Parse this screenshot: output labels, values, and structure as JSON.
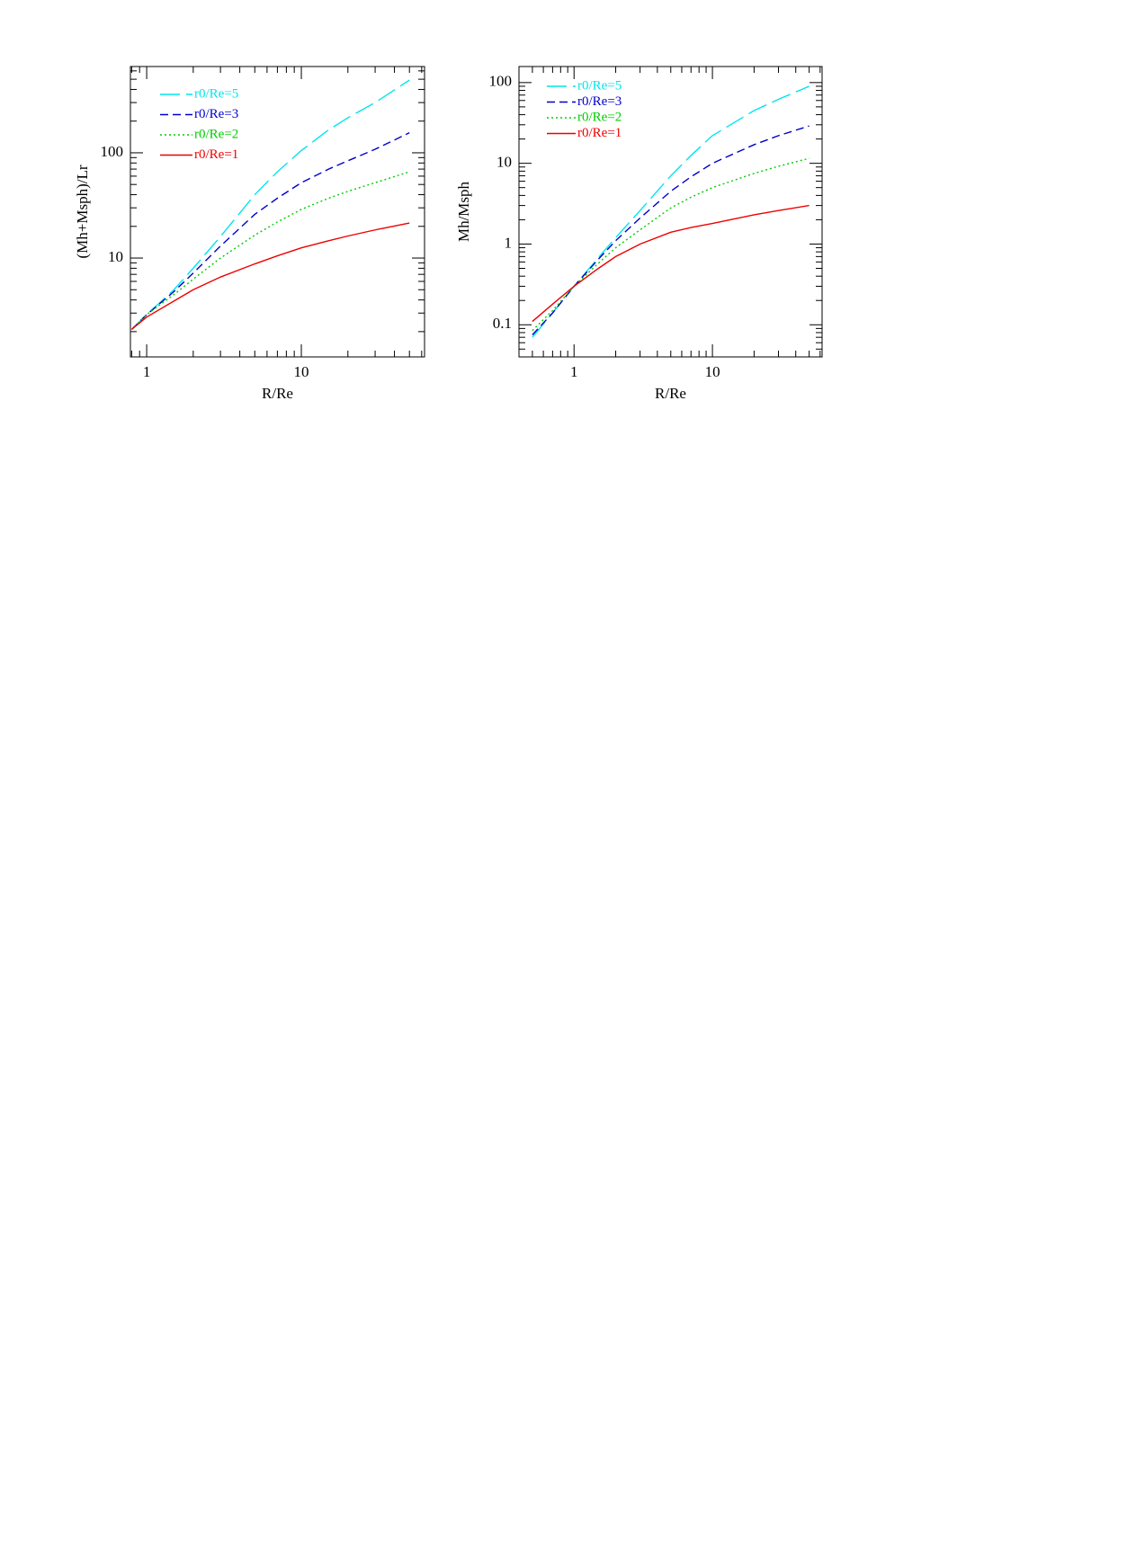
{
  "chart_data": [
    {
      "type": "line",
      "ylabel": "(Mh+Msph)/Lr",
      "xlabel": "R/Re",
      "log_x": true,
      "log_y": true,
      "xlim": [
        0.785,
        62.6
      ],
      "ylim": [
        1.15,
        660
      ],
      "xticks": [
        1,
        10
      ],
      "yticks": [
        10,
        100
      ],
      "x_minor_ticks": [
        0.8,
        0.9,
        2,
        3,
        4,
        5,
        6,
        7,
        8,
        9,
        20,
        30,
        40,
        50,
        60
      ],
      "y_minor_ticks": [
        2,
        3,
        4,
        5,
        6,
        7,
        8,
        9,
        20,
        30,
        40,
        50,
        60,
        70,
        80,
        90,
        200,
        300,
        400,
        500,
        600
      ],
      "x": [
        0.8,
        1,
        1.5,
        2,
        3,
        5,
        7,
        10,
        15,
        20,
        30,
        50
      ],
      "series": [
        {
          "name": "r0/Re=5",
          "color": "#00e5ee",
          "style": "long-dash",
          "values": [
            2.1,
            2.9,
            5,
            8,
            16,
            40,
            66,
            105,
            165,
            215,
            300,
            490
          ]
        },
        {
          "name": "r0/Re=3",
          "color": "#0000cc",
          "style": "dash",
          "values": [
            2.1,
            2.9,
            4.8,
            7.2,
            13,
            26,
            37,
            52,
            70,
            84,
            108,
            155
          ]
        },
        {
          "name": "r0/Re=2",
          "color": "#00cc00",
          "style": "dot",
          "values": [
            2.1,
            2.9,
            4.5,
            6.3,
            10,
            16.5,
            22,
            29,
            37,
            43,
            52,
            66
          ]
        },
        {
          "name": "r0/Re=1",
          "color": "#ee0000",
          "style": "solid",
          "values": [
            2.1,
            2.75,
            3.9,
            5.0,
            6.6,
            8.8,
            10.5,
            12.5,
            14.6,
            16.2,
            18.5,
            21.5
          ]
        }
      ]
    },
    {
      "type": "line",
      "ylabel": "Mh/Msph",
      "xlabel": "R/Re",
      "log_x": true,
      "log_y": true,
      "xlim": [
        0.4,
        62
      ],
      "ylim": [
        0.04,
        158
      ],
      "xticks": [
        1,
        10
      ],
      "yticks": [
        0.1,
        1,
        10,
        100
      ],
      "x_minor_ticks": [
        0.4,
        0.5,
        0.6,
        0.7,
        0.8,
        0.9,
        2,
        3,
        4,
        5,
        6,
        7,
        8,
        9,
        20,
        30,
        40,
        50,
        60
      ],
      "y_minor_ticks": [
        0.04,
        0.05,
        0.06,
        0.07,
        0.08,
        0.09,
        0.2,
        0.3,
        0.4,
        0.5,
        0.6,
        0.7,
        0.8,
        0.9,
        2,
        3,
        4,
        5,
        6,
        7,
        8,
        9,
        20,
        30,
        40,
        50,
        60,
        70,
        80,
        90
      ],
      "x": [
        0.5,
        0.7,
        1,
        1.5,
        2,
        3,
        5,
        7,
        10,
        20,
        30,
        50
      ],
      "series": [
        {
          "name": "r0/Re=5",
          "color": "#00e5ee",
          "style": "long-dash",
          "values": [
            0.07,
            0.14,
            0.3,
            0.68,
            1.2,
            2.6,
            7,
            12.5,
            22,
            45,
            62,
            90
          ]
        },
        {
          "name": "r0/Re=3",
          "color": "#0000cc",
          "style": "dash",
          "values": [
            0.075,
            0.14,
            0.3,
            0.65,
            1.1,
            2.1,
            4.5,
            6.8,
            10,
            17,
            22,
            29
          ]
        },
        {
          "name": "r0/Re=2",
          "color": "#00cc00",
          "style": "dot",
          "values": [
            0.085,
            0.15,
            0.3,
            0.58,
            0.9,
            1.5,
            2.8,
            3.8,
            5,
            7.5,
            9.2,
            11.5
          ]
        },
        {
          "name": "r0/Re=1",
          "color": "#ee0000",
          "style": "solid",
          "values": [
            0.11,
            0.18,
            0.3,
            0.5,
            0.7,
            1.0,
            1.4,
            1.6,
            1.8,
            2.3,
            2.6,
            3.0
          ]
        }
      ]
    }
  ]
}
